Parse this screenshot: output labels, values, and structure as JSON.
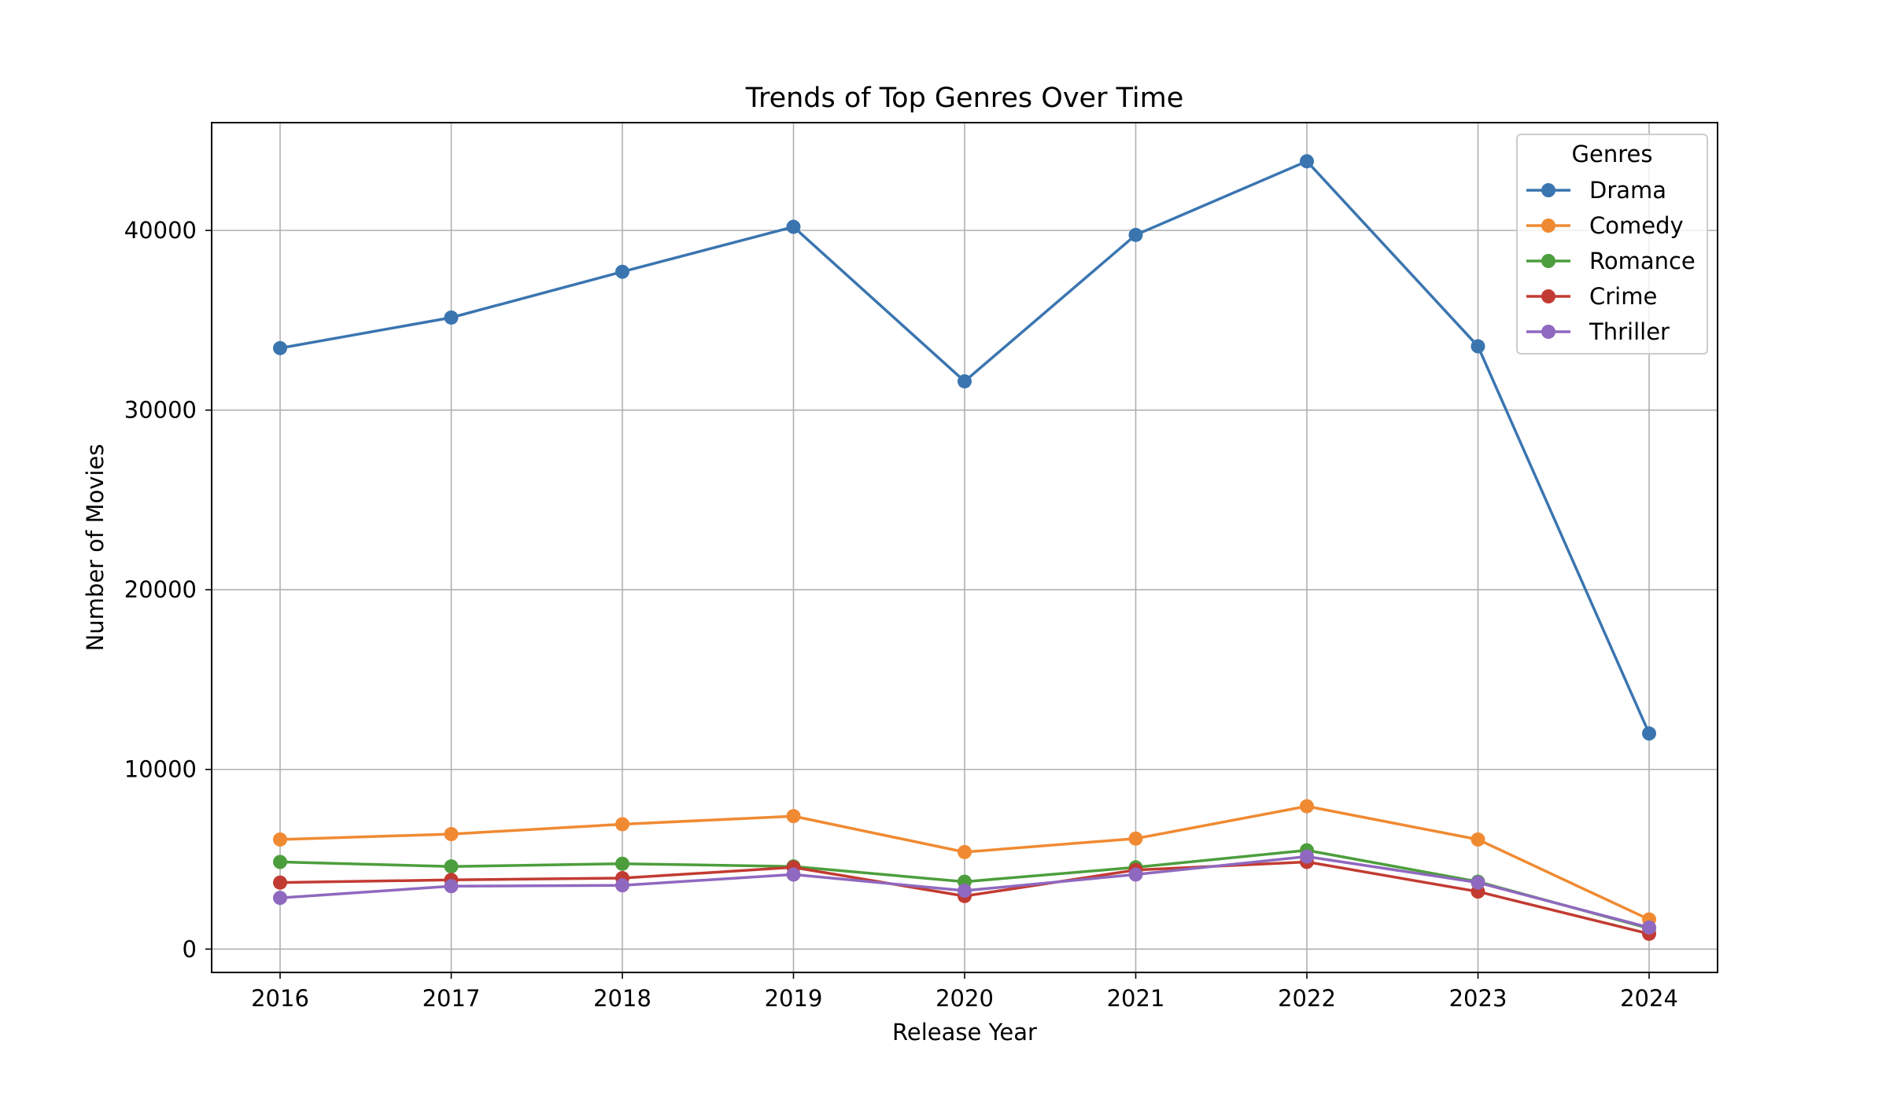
{
  "chart_data": {
    "type": "line",
    "title": "Trends of Top Genres Over Time",
    "xlabel": "Release Year",
    "ylabel": "Number of Movies",
    "x": [
      2016,
      2017,
      2018,
      2019,
      2020,
      2021,
      2022,
      2023,
      2024
    ],
    "x_tick_labels": [
      "2016",
      "2017",
      "2018",
      "2019",
      "2020",
      "2021",
      "2022",
      "2023",
      "2024"
    ],
    "xlim": [
      2015.6,
      2024.4
    ],
    "ylim": [
      -1300,
      46000
    ],
    "y_ticks": [
      0,
      10000,
      20000,
      30000,
      40000
    ],
    "y_tick_labels": [
      "0",
      "10000",
      "20000",
      "30000",
      "40000"
    ],
    "grid": true,
    "markers": true,
    "legend": {
      "title": "Genres",
      "placement": "top-right"
    },
    "series": [
      {
        "name": "Drama",
        "color": "#3a75b0",
        "values": [
          33450,
          35150,
          37700,
          40200,
          31600,
          39750,
          43850,
          33550,
          12000
        ]
      },
      {
        "name": "Comedy",
        "color": "#f08a32",
        "values": [
          6100,
          6400,
          6950,
          7400,
          5400,
          6150,
          7950,
          6100,
          1650
        ]
      },
      {
        "name": "Romance",
        "color": "#4c9e3c",
        "values": [
          4850,
          4600,
          4750,
          4600,
          3750,
          4550,
          5500,
          3750,
          1150
        ]
      },
      {
        "name": "Crime",
        "color": "#c23b32",
        "values": [
          3700,
          3850,
          3950,
          4550,
          2950,
          4400,
          4850,
          3200,
          850
        ]
      },
      {
        "name": "Thriller",
        "color": "#8f68bf",
        "values": [
          2850,
          3500,
          3550,
          4150,
          3250,
          4150,
          5150,
          3700,
          1200
        ]
      }
    ]
  }
}
